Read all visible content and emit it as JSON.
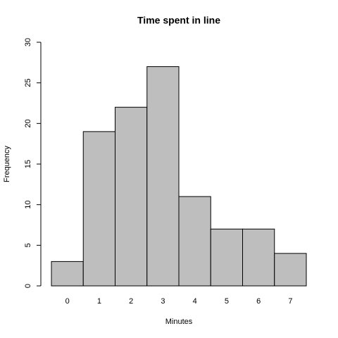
{
  "chart_data": {
    "type": "bar",
    "title": "Time spent in line",
    "x_label": "Minutes",
    "y_label": "Frequency",
    "categories": [
      "0",
      "1",
      "2",
      "3",
      "4",
      "5",
      "6",
      "7"
    ],
    "values": [
      3,
      19,
      22,
      27,
      11,
      7,
      7,
      4
    ],
    "color": "#bebebe",
    "ylim": [
      0,
      30
    ],
    "yticks": [
      0,
      5,
      10,
      15,
      20,
      25,
      30
    ],
    "grid": false
  }
}
